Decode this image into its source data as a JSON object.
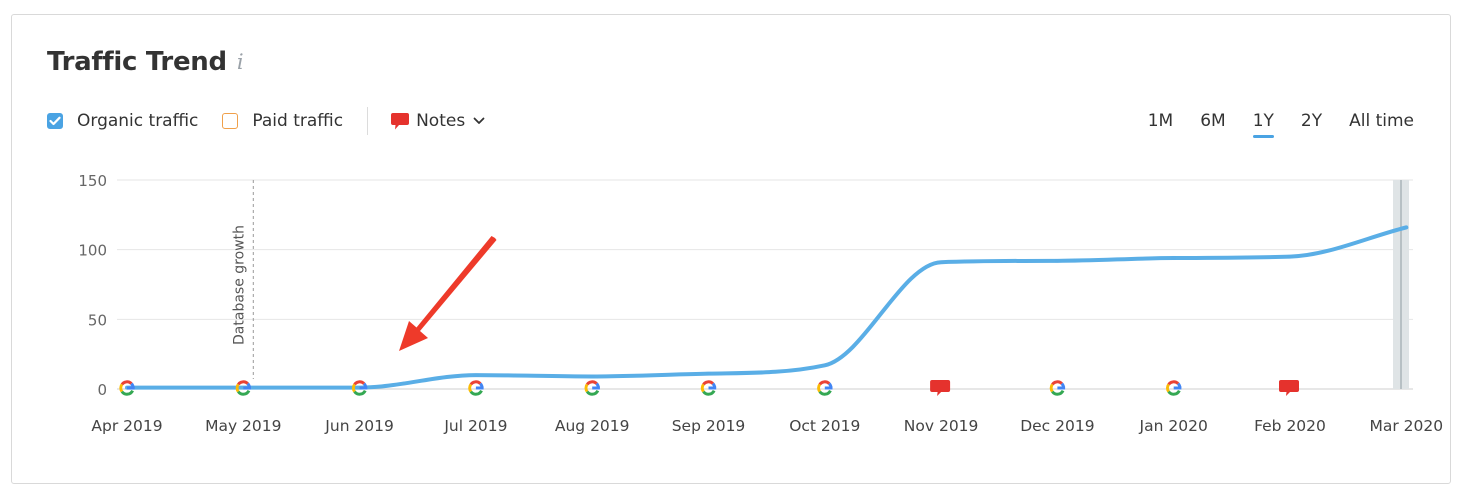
{
  "header": {
    "title": "Traffic Trend",
    "info_glyph": "i"
  },
  "legend": {
    "organic_label": "Organic traffic",
    "organic_checked": true,
    "paid_label": "Paid traffic",
    "paid_checked": false,
    "notes_label": "Notes"
  },
  "periods": [
    "1M",
    "6M",
    "1Y",
    "2Y",
    "All time"
  ],
  "active_period": "1Y",
  "colors": {
    "organic": "#5aaee6",
    "paid": "#f0a04a",
    "accent": "#4aa3e3",
    "note": "#e5322d",
    "arrow": "#ee3a2a"
  },
  "chart_data": {
    "type": "line",
    "title": "Traffic Trend",
    "xlabel": "",
    "ylabel": "",
    "ylim": [
      0,
      150
    ],
    "yticks": [
      0,
      50,
      100,
      150
    ],
    "categories": [
      "Apr 2019",
      "May 2019",
      "Jun 2019",
      "Jul 2019",
      "Aug 2019",
      "Sep 2019",
      "Oct 2019",
      "Nov 2019",
      "Dec 2019",
      "Jan 2020",
      "Feb 2020",
      "Mar 2020"
    ],
    "series": [
      {
        "name": "Organic traffic",
        "values": [
          1,
          1,
          1,
          10,
          9,
          11,
          17,
          91,
          92,
          94,
          95,
          116
        ]
      }
    ],
    "grid": true,
    "annotations": [
      {
        "at": "May 2019",
        "text": "Database growth",
        "style": "dashed-vertical"
      }
    ],
    "markers": [
      {
        "at": "Apr 2019",
        "icon": "google"
      },
      {
        "at": "May 2019",
        "icon": "google"
      },
      {
        "at": "Jun 2019",
        "icon": "google"
      },
      {
        "at": "Jul 2019",
        "icon": "google"
      },
      {
        "at": "Aug 2019",
        "icon": "google"
      },
      {
        "at": "Sep 2019",
        "icon": "google"
      },
      {
        "at": "Oct 2019",
        "icon": "google"
      },
      {
        "at": "Nov 2019",
        "icon": "note"
      },
      {
        "at": "Dec 2019",
        "icon": "google"
      },
      {
        "at": "Jan 2020",
        "icon": "google"
      },
      {
        "at": "Feb 2020",
        "icon": "note"
      }
    ]
  }
}
